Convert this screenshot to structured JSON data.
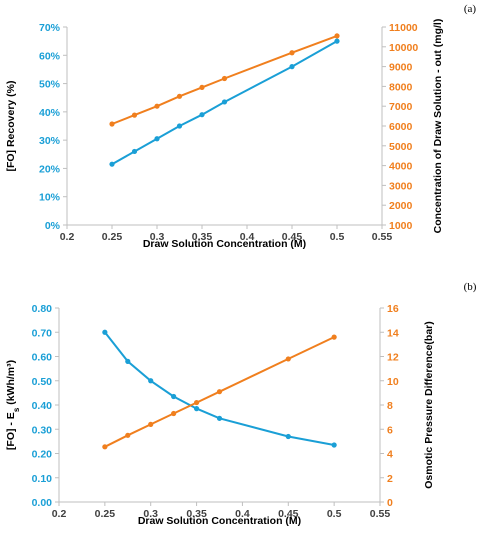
{
  "chart_data": [
    {
      "type": "line",
      "panel_label": "(a)",
      "xlabel": "Draw Solution Concentration (M)",
      "ylabel_left": "[FO] Recovery (%)",
      "ylabel_right": "Concentration of Draw Solution - out (mg/l)",
      "xlim": [
        0.2,
        0.55
      ],
      "ylim_left": [
        0,
        70
      ],
      "ylim_right": [
        1000,
        11000
      ],
      "x_ticks": [
        "0.2",
        "0.25",
        "0.3",
        "0.35",
        "0.4",
        "0.45",
        "0.5",
        "0.55"
      ],
      "y_left_ticks": [
        "0%",
        "10%",
        "20%",
        "30%",
        "40%",
        "50%",
        "60%",
        "70%"
      ],
      "y_right_ticks": [
        "1000",
        "2000",
        "3000",
        "4000",
        "5000",
        "6000",
        "7000",
        "8000",
        "9000",
        "10000",
        "11000"
      ],
      "grid": false,
      "series": [
        {
          "axis": "left",
          "color": "#1a9fd6",
          "x": [
            0.25,
            0.275,
            0.3,
            0.325,
            0.35,
            0.375,
            0.45,
            0.5
          ],
          "values": [
            21.5,
            26,
            30.5,
            35,
            39,
            43.5,
            56,
            65
          ]
        },
        {
          "axis": "right",
          "color": "#f07f1e",
          "x": [
            0.25,
            0.275,
            0.3,
            0.325,
            0.35,
            0.375,
            0.45,
            0.5
          ],
          "values": [
            6100,
            6550,
            7000,
            7500,
            7950,
            8400,
            9700,
            10550
          ]
        }
      ]
    },
    {
      "type": "line",
      "panel_label": "(b)",
      "xlabel": "Draw Solution Concentration (M)",
      "ylabel_left": "[FO] - E",
      "ylabel_left_sub": "s",
      "ylabel_left_unit": " (kWh/m³)",
      "ylabel_right": "Osmotic Pressure Difference(bar)",
      "xlim": [
        0.2,
        0.55
      ],
      "ylim_left": [
        0,
        0.8
      ],
      "ylim_right": [
        0,
        16
      ],
      "x_ticks": [
        "0.2",
        "0.25",
        "0.3",
        "0.35",
        "0.4",
        "0.45",
        "0.5",
        "0.55"
      ],
      "y_left_ticks": [
        "0.00",
        "0.10",
        "0.20",
        "0.30",
        "0.40",
        "0.50",
        "0.60",
        "0.70",
        "0.80"
      ],
      "y_right_ticks": [
        "0",
        "2",
        "4",
        "6",
        "8",
        "10",
        "12",
        "14",
        "16"
      ],
      "grid": false,
      "series": [
        {
          "axis": "left",
          "color": "#1a9fd6",
          "x": [
            0.25,
            0.275,
            0.3,
            0.325,
            0.35,
            0.375,
            0.45,
            0.5
          ],
          "values": [
            0.7,
            0.58,
            0.5,
            0.435,
            0.385,
            0.345,
            0.27,
            0.235
          ]
        },
        {
          "axis": "right",
          "color": "#f07f1e",
          "x": [
            0.25,
            0.275,
            0.3,
            0.325,
            0.35,
            0.375,
            0.45,
            0.5
          ],
          "values": [
            4.55,
            5.5,
            6.4,
            7.3,
            8.2,
            9.1,
            11.8,
            13.6
          ]
        }
      ]
    }
  ]
}
